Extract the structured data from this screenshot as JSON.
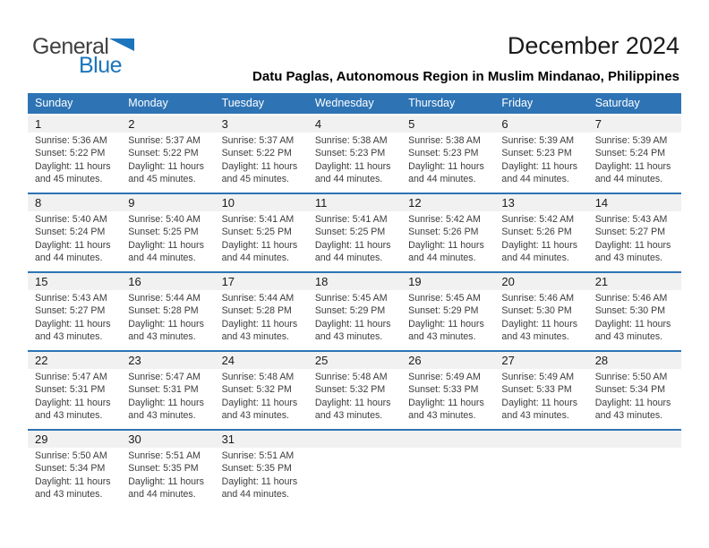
{
  "logo": {
    "text_top": "General",
    "text_bottom": "Blue"
  },
  "header": {
    "month_title": "December 2024",
    "location_subtitle": "Datu Paglas, Autonomous Region in Muslim Mindanao, Philippines"
  },
  "colors": {
    "header_blue": "#2E74B5",
    "divider_blue": "#2E74B5",
    "day_band_gray": "#F1F1F1",
    "logo_blue": "#1B75BC",
    "logo_dark_gray": "#414042",
    "body_text": "#3C3C3C"
  },
  "calendar": {
    "weekdays": [
      "Sunday",
      "Monday",
      "Tuesday",
      "Wednesday",
      "Thursday",
      "Friday",
      "Saturday"
    ],
    "weeks": [
      [
        {
          "day": "1",
          "lines": [
            "Sunrise: 5:36 AM",
            "Sunset: 5:22 PM",
            "Daylight: 11 hours",
            "and 45 minutes."
          ]
        },
        {
          "day": "2",
          "lines": [
            "Sunrise: 5:37 AM",
            "Sunset: 5:22 PM",
            "Daylight: 11 hours",
            "and 45 minutes."
          ]
        },
        {
          "day": "3",
          "lines": [
            "Sunrise: 5:37 AM",
            "Sunset: 5:22 PM",
            "Daylight: 11 hours",
            "and 45 minutes."
          ]
        },
        {
          "day": "4",
          "lines": [
            "Sunrise: 5:38 AM",
            "Sunset: 5:23 PM",
            "Daylight: 11 hours",
            "and 44 minutes."
          ]
        },
        {
          "day": "5",
          "lines": [
            "Sunrise: 5:38 AM",
            "Sunset: 5:23 PM",
            "Daylight: 11 hours",
            "and 44 minutes."
          ]
        },
        {
          "day": "6",
          "lines": [
            "Sunrise: 5:39 AM",
            "Sunset: 5:23 PM",
            "Daylight: 11 hours",
            "and 44 minutes."
          ]
        },
        {
          "day": "7",
          "lines": [
            "Sunrise: 5:39 AM",
            "Sunset: 5:24 PM",
            "Daylight: 11 hours",
            "and 44 minutes."
          ]
        }
      ],
      [
        {
          "day": "8",
          "lines": [
            "Sunrise: 5:40 AM",
            "Sunset: 5:24 PM",
            "Daylight: 11 hours",
            "and 44 minutes."
          ]
        },
        {
          "day": "9",
          "lines": [
            "Sunrise: 5:40 AM",
            "Sunset: 5:25 PM",
            "Daylight: 11 hours",
            "and 44 minutes."
          ]
        },
        {
          "day": "10",
          "lines": [
            "Sunrise: 5:41 AM",
            "Sunset: 5:25 PM",
            "Daylight: 11 hours",
            "and 44 minutes."
          ]
        },
        {
          "day": "11",
          "lines": [
            "Sunrise: 5:41 AM",
            "Sunset: 5:25 PM",
            "Daylight: 11 hours",
            "and 44 minutes."
          ]
        },
        {
          "day": "12",
          "lines": [
            "Sunrise: 5:42 AM",
            "Sunset: 5:26 PM",
            "Daylight: 11 hours",
            "and 44 minutes."
          ]
        },
        {
          "day": "13",
          "lines": [
            "Sunrise: 5:42 AM",
            "Sunset: 5:26 PM",
            "Daylight: 11 hours",
            "and 44 minutes."
          ]
        },
        {
          "day": "14",
          "lines": [
            "Sunrise: 5:43 AM",
            "Sunset: 5:27 PM",
            "Daylight: 11 hours",
            "and 43 minutes."
          ]
        }
      ],
      [
        {
          "day": "15",
          "lines": [
            "Sunrise: 5:43 AM",
            "Sunset: 5:27 PM",
            "Daylight: 11 hours",
            "and 43 minutes."
          ]
        },
        {
          "day": "16",
          "lines": [
            "Sunrise: 5:44 AM",
            "Sunset: 5:28 PM",
            "Daylight: 11 hours",
            "and 43 minutes."
          ]
        },
        {
          "day": "17",
          "lines": [
            "Sunrise: 5:44 AM",
            "Sunset: 5:28 PM",
            "Daylight: 11 hours",
            "and 43 minutes."
          ]
        },
        {
          "day": "18",
          "lines": [
            "Sunrise: 5:45 AM",
            "Sunset: 5:29 PM",
            "Daylight: 11 hours",
            "and 43 minutes."
          ]
        },
        {
          "day": "19",
          "lines": [
            "Sunrise: 5:45 AM",
            "Sunset: 5:29 PM",
            "Daylight: 11 hours",
            "and 43 minutes."
          ]
        },
        {
          "day": "20",
          "lines": [
            "Sunrise: 5:46 AM",
            "Sunset: 5:30 PM",
            "Daylight: 11 hours",
            "and 43 minutes."
          ]
        },
        {
          "day": "21",
          "lines": [
            "Sunrise: 5:46 AM",
            "Sunset: 5:30 PM",
            "Daylight: 11 hours",
            "and 43 minutes."
          ]
        }
      ],
      [
        {
          "day": "22",
          "lines": [
            "Sunrise: 5:47 AM",
            "Sunset: 5:31 PM",
            "Daylight: 11 hours",
            "and 43 minutes."
          ]
        },
        {
          "day": "23",
          "lines": [
            "Sunrise: 5:47 AM",
            "Sunset: 5:31 PM",
            "Daylight: 11 hours",
            "and 43 minutes."
          ]
        },
        {
          "day": "24",
          "lines": [
            "Sunrise: 5:48 AM",
            "Sunset: 5:32 PM",
            "Daylight: 11 hours",
            "and 43 minutes."
          ]
        },
        {
          "day": "25",
          "lines": [
            "Sunrise: 5:48 AM",
            "Sunset: 5:32 PM",
            "Daylight: 11 hours",
            "and 43 minutes."
          ]
        },
        {
          "day": "26",
          "lines": [
            "Sunrise: 5:49 AM",
            "Sunset: 5:33 PM",
            "Daylight: 11 hours",
            "and 43 minutes."
          ]
        },
        {
          "day": "27",
          "lines": [
            "Sunrise: 5:49 AM",
            "Sunset: 5:33 PM",
            "Daylight: 11 hours",
            "and 43 minutes."
          ]
        },
        {
          "day": "28",
          "lines": [
            "Sunrise: 5:50 AM",
            "Sunset: 5:34 PM",
            "Daylight: 11 hours",
            "and 43 minutes."
          ]
        }
      ],
      [
        {
          "day": "29",
          "lines": [
            "Sunrise: 5:50 AM",
            "Sunset: 5:34 PM",
            "Daylight: 11 hours",
            "and 43 minutes."
          ]
        },
        {
          "day": "30",
          "lines": [
            "Sunrise: 5:51 AM",
            "Sunset: 5:35 PM",
            "Daylight: 11 hours",
            "and 44 minutes."
          ]
        },
        {
          "day": "31",
          "lines": [
            "Sunrise: 5:51 AM",
            "Sunset: 5:35 PM",
            "Daylight: 11 hours",
            "and 44 minutes."
          ]
        },
        null,
        null,
        null,
        null
      ]
    ]
  }
}
